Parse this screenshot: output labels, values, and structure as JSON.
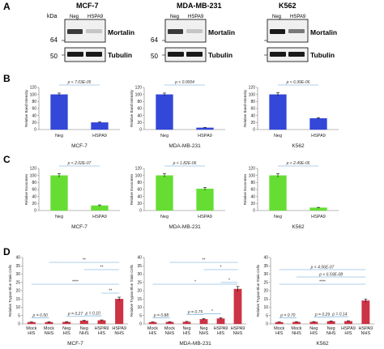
{
  "panel_labels": {
    "A": "A",
    "B": "B",
    "C": "C",
    "D": "D"
  },
  "blots": {
    "kda_label": "kDa",
    "mw_top": "64",
    "mw_bottom": "50",
    "lanes": [
      "Neg",
      "HSPA9"
    ],
    "protein_top": "Mortalin",
    "protein_bottom": "Tubulin",
    "cells": [
      "MCF-7",
      "MDA-MB-231",
      "K562"
    ],
    "mw_visible": [
      true,
      true,
      false
    ]
  },
  "chart_data": [
    {
      "panel": "B",
      "type": "bar",
      "title": "MCF-7",
      "ylabel": "Relative Band Intensity",
      "categories": [
        "Neg",
        "HSPA9"
      ],
      "values": [
        100,
        20
      ],
      "errors": [
        4,
        2
      ],
      "ylim": [
        0,
        120
      ],
      "yticks": [
        0,
        20,
        40,
        60,
        80,
        100,
        120
      ],
      "color": "#3347d9",
      "pvalue": "p < 7.03E-05"
    },
    {
      "panel": "B",
      "type": "bar",
      "title": "MDA-MB-231",
      "ylabel": "Relative Band Intensity",
      "categories": [
        "Neg",
        "HSPA9"
      ],
      "values": [
        100,
        5
      ],
      "errors": [
        4,
        1
      ],
      "ylim": [
        0,
        120
      ],
      "yticks": [
        0,
        20,
        40,
        60,
        80,
        100,
        120
      ],
      "color": "#3347d9",
      "pvalue": "p < 0.0004"
    },
    {
      "panel": "B",
      "type": "bar",
      "title": "K562",
      "ylabel": "Relative Band Intensity",
      "categories": [
        "Neg",
        "HSPA9"
      ],
      "values": [
        100,
        32
      ],
      "errors": [
        5,
        2
      ],
      "ylim": [
        0,
        120
      ],
      "yticks": [
        0,
        20,
        40,
        60,
        80,
        100,
        120
      ],
      "color": "#3347d9",
      "pvalue": "p < 6.99E-06"
    },
    {
      "panel": "C",
      "type": "bar",
      "title": "MCF-7",
      "ylabel": "Relative Exosomes",
      "categories": [
        "Neg",
        "HSPA9"
      ],
      "values": [
        100,
        14
      ],
      "errors": [
        5,
        2
      ],
      "ylim": [
        0,
        120
      ],
      "yticks": [
        0,
        20,
        40,
        60,
        80,
        100,
        120
      ],
      "color": "#66dd33",
      "pvalue": "p < 2.02E-07"
    },
    {
      "panel": "C",
      "type": "bar",
      "title": "MDA-MB-231",
      "ylabel": "Relative Exosomes",
      "categories": [
        "Neg",
        "HSPA9"
      ],
      "values": [
        100,
        62
      ],
      "errors": [
        5,
        4
      ],
      "ylim": [
        0,
        120
      ],
      "yticks": [
        0,
        20,
        40,
        60,
        80,
        100,
        120
      ],
      "color": "#66dd33",
      "pvalue": "p < 1.82E-06"
    },
    {
      "panel": "C",
      "type": "bar",
      "title": "K562",
      "ylabel": "Relative Exosomes",
      "categories": [
        "Neg",
        "HSPA9"
      ],
      "values": [
        100,
        8
      ],
      "errors": [
        5,
        1
      ],
      "ylim": [
        0,
        120
      ],
      "yticks": [
        0,
        20,
        40,
        60,
        80,
        100,
        120
      ],
      "color": "#66dd33",
      "pvalue": "p < 2.49E-06"
    },
    {
      "panel": "D",
      "type": "bar",
      "title": "MCF-7",
      "ylabel": "Relative Trypan Blue Stain Cells",
      "categories": [
        [
          "Mock",
          "HIS"
        ],
        [
          "Mock",
          "NHS"
        ],
        [
          "Neg",
          "HIS"
        ],
        [
          "Neg",
          "NHS"
        ],
        [
          "HSPA9",
          "HIS"
        ],
        [
          "HSPA9",
          "NHS"
        ]
      ],
      "values": [
        1,
        1,
        1.1,
        1.9,
        2.1,
        15
      ],
      "errors": [
        0.2,
        0.3,
        0.2,
        0.3,
        0.3,
        1.1
      ],
      "ylim": [
        0,
        40
      ],
      "yticks": [
        0,
        5,
        10,
        15,
        20,
        25,
        30,
        35,
        40
      ],
      "color": "#cc3344",
      "brackets": [
        {
          "from": 0,
          "to": 1,
          "label": "p = 0.50"
        },
        {
          "from": 2,
          "to": 3,
          "label": "p = 0.27"
        },
        {
          "from": 3,
          "to": 4,
          "label": "p = 0.10"
        },
        {
          "from": 0,
          "to": 5,
          "label": "****"
        },
        {
          "from": 4,
          "to": 5,
          "label": "**"
        },
        {
          "from": 3,
          "to": 5,
          "label": "**"
        },
        {
          "from": 1,
          "to": 5,
          "label": "**"
        }
      ]
    },
    {
      "panel": "D",
      "type": "bar",
      "title": "MDA-MB-231",
      "ylabel": "Relative Trypan Blue Stain Cells",
      "categories": [
        [
          "Mock",
          "HIS"
        ],
        [
          "Mock",
          "NHS"
        ],
        [
          "Neg",
          "HIS"
        ],
        [
          "Neg",
          "NHS"
        ],
        [
          "HSPA9",
          "HIS"
        ],
        [
          "HSPA9",
          "NHS"
        ]
      ],
      "values": [
        1,
        1.1,
        1.2,
        2.8,
        3.2,
        21
      ],
      "errors": [
        0.2,
        0.2,
        0.3,
        0.4,
        0.5,
        1.5
      ],
      "ylim": [
        0,
        40
      ],
      "yticks": [
        0,
        5,
        10,
        15,
        20,
        25,
        30,
        35,
        40
      ],
      "color": "#cc3344",
      "brackets": [
        {
          "from": 0,
          "to": 1,
          "label": "p = 0.88"
        },
        {
          "from": 2,
          "to": 3,
          "label": "p = 0.75"
        },
        {
          "from": 3,
          "to": 4,
          "label": "*"
        },
        {
          "from": 0,
          "to": 5,
          "label": "*"
        },
        {
          "from": 4,
          "to": 5,
          "label": "*"
        },
        {
          "from": 3,
          "to": 5,
          "label": "*"
        },
        {
          "from": 1,
          "to": 5,
          "label": "**"
        }
      ]
    },
    {
      "panel": "D",
      "type": "bar",
      "title": "K562",
      "ylabel": "Relative Trypan Blue Stain Cells",
      "categories": [
        [
          "Mock",
          "HIS"
        ],
        [
          "Mock",
          "NHS"
        ],
        [
          "Neg",
          "HIS"
        ],
        [
          "Neg",
          "NHS"
        ],
        [
          "HSPA9",
          "HIS"
        ],
        [
          "HSPA9",
          "NHS"
        ]
      ],
      "values": [
        1,
        1.1,
        1.2,
        1.5,
        1.6,
        14
      ],
      "errors": [
        0.2,
        0.2,
        0.2,
        0.3,
        0.3,
        1
      ],
      "ylim": [
        0,
        40
      ],
      "yticks": [
        0,
        5,
        10,
        15,
        20,
        25,
        30,
        35,
        40
      ],
      "color": "#cc3344",
      "brackets": [
        {
          "from": 0,
          "to": 1,
          "label": "p = 0.70"
        },
        {
          "from": 2,
          "to": 3,
          "label": "p = 0.29"
        },
        {
          "from": 3,
          "to": 4,
          "label": "p = 0.14"
        },
        {
          "from": 0,
          "to": 5,
          "label": "****"
        },
        {
          "from": 1,
          "to": 5,
          "label": "p < 6.59E-08"
        },
        {
          "from": 0,
          "to": 5,
          "label": "p < 4.56E-07"
        }
      ]
    }
  ]
}
